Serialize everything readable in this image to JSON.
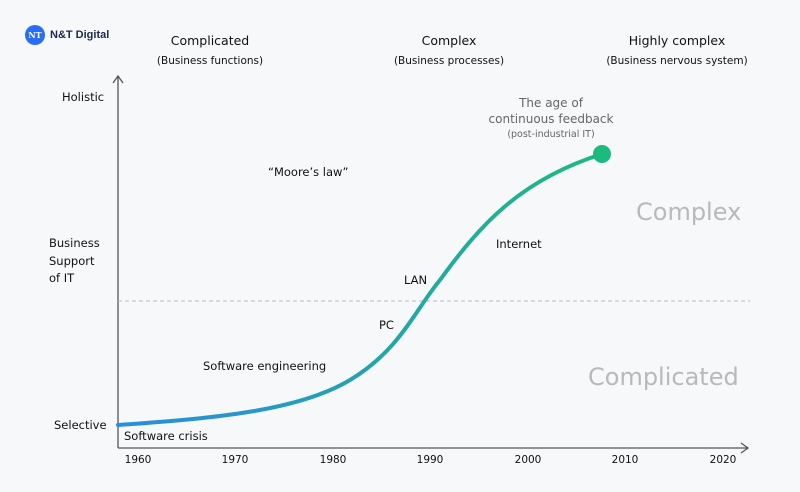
{
  "brand": {
    "logo_mark": "NT",
    "name": "N&T Digital"
  },
  "columns": [
    {
      "title": "Complicated",
      "subtitle": "(Business functions)"
    },
    {
      "title": "Complex",
      "subtitle": "(Business processes)"
    },
    {
      "title": "Highly complex",
      "subtitle": "(Business nervous system)"
    }
  ],
  "y_axis": {
    "label_lines": [
      "Business",
      "Support",
      "of IT"
    ],
    "top": "Holistic",
    "bottom": "Selective"
  },
  "x_axis": {
    "ticks": [
      "1960",
      "1970",
      "1980",
      "1990",
      "2000",
      "2010",
      "2020"
    ]
  },
  "annotations": {
    "moores_law": "“Moore’s law”",
    "endpoint_line1": "The age of",
    "endpoint_line2": "continuous feedback",
    "endpoint_sub": "(post-industrial IT)",
    "software_crisis": "Software crisis",
    "software_engineering": "Software engineering",
    "pc": "PC",
    "lan": "LAN",
    "internet": "Internet"
  },
  "zones": {
    "upper": "Complex",
    "lower": "Complicated"
  },
  "colors": {
    "curve_start": "#2b8ce0",
    "curve_end": "#1dba7e",
    "brand": "#2a6df4"
  }
}
